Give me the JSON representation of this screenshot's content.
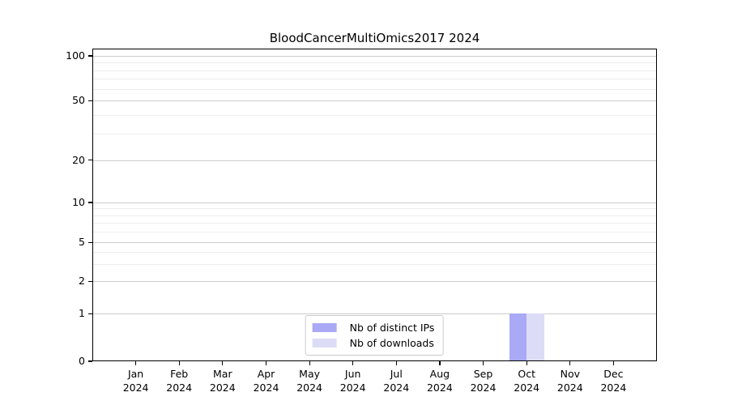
{
  "chart_data": {
    "type": "bar",
    "title": "BloodCancerMultiOmics2017 2024",
    "categories": [
      "Jan",
      "Feb",
      "Mar",
      "Apr",
      "May",
      "Jun",
      "Jul",
      "Aug",
      "Sep",
      "Oct",
      "Nov",
      "Dec"
    ],
    "category_year": "2024",
    "series": [
      {
        "name": "Nb of distinct IPs",
        "color": "#a9a9f5",
        "values": [
          0,
          0,
          0,
          0,
          0,
          0,
          0,
          0,
          0,
          1,
          0,
          0
        ]
      },
      {
        "name": "Nb of downloads",
        "color": "#dcdcf7",
        "values": [
          0,
          0,
          0,
          0,
          0,
          0,
          0,
          0,
          0,
          1,
          0,
          0
        ]
      }
    ],
    "y_ticks": [
      0,
      1,
      2,
      5,
      10,
      20,
      50,
      100
    ],
    "ylim": [
      0,
      100
    ],
    "yscale": "log-like with linear segment below 1",
    "grid": true,
    "legend_position": "lower center",
    "colors": {
      "axis": "#000000",
      "grid_major": "#cccccc",
      "grid_minor": "#ededed",
      "legend_border": "#cccccc",
      "background": "#ffffff"
    }
  }
}
